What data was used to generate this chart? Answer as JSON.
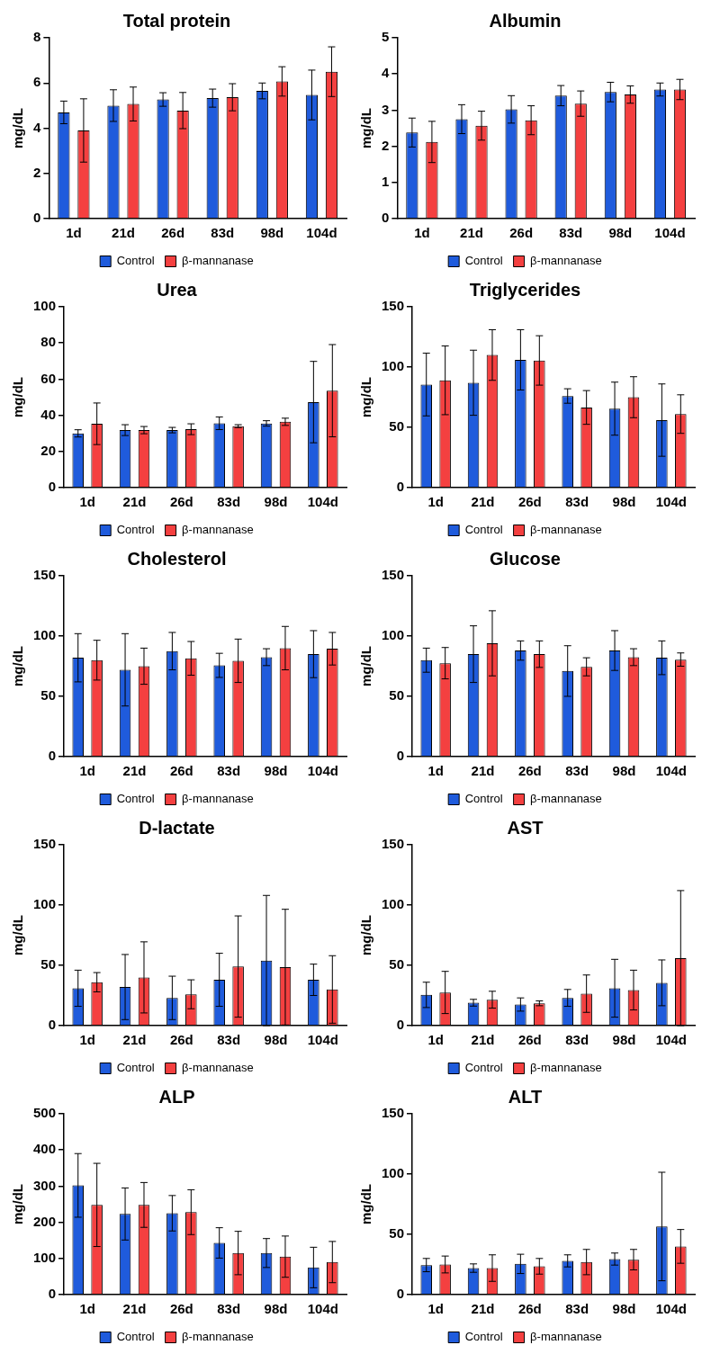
{
  "chart_data": [
    {
      "type": "bar",
      "title": "Total protein",
      "ylabel": "mg/dL",
      "categories": [
        "1d",
        "21d",
        "26d",
        "83d",
        "98d",
        "104d"
      ],
      "ylim": [
        0,
        8
      ],
      "yticks": [
        0,
        2,
        4,
        6,
        8
      ],
      "grid": false,
      "legend": "bottom",
      "series": [
        {
          "name": "Control",
          "color": "#1f5bdc",
          "values": [
            4.7,
            5.0,
            5.27,
            5.33,
            5.65,
            5.47
          ],
          "errors": [
            0.5,
            0.7,
            0.3,
            0.4,
            0.35,
            1.1
          ]
        },
        {
          "name": "β-mannanase",
          "color": "#f44040",
          "values": [
            3.9,
            5.07,
            4.78,
            5.37,
            6.07,
            6.5
          ],
          "errors": [
            1.4,
            0.75,
            0.8,
            0.6,
            0.65,
            1.1
          ]
        }
      ]
    },
    {
      "type": "bar",
      "title": "Albumin",
      "ylabel": "mg/dL",
      "categories": [
        "1d",
        "21d",
        "26d",
        "83d",
        "98d",
        "104d"
      ],
      "ylim": [
        0,
        5
      ],
      "yticks": [
        0,
        1,
        2,
        3,
        4,
        5
      ],
      "grid": false,
      "legend": "bottom",
      "series": [
        {
          "name": "Control",
          "color": "#1f5bdc",
          "values": [
            2.38,
            2.75,
            3.02,
            3.4,
            3.5,
            3.57
          ],
          "errors": [
            0.4,
            0.4,
            0.38,
            0.28,
            0.27,
            0.18
          ]
        },
        {
          "name": "β-mannanase",
          "color": "#f44040",
          "values": [
            2.12,
            2.57,
            2.72,
            3.18,
            3.43,
            3.57
          ],
          "errors": [
            0.57,
            0.4,
            0.4,
            0.35,
            0.24,
            0.28
          ]
        }
      ]
    },
    {
      "type": "bar",
      "title": "Urea",
      "ylabel": "mg/dL",
      "categories": [
        "1d",
        "21d",
        "26d",
        "83d",
        "98d",
        "104d"
      ],
      "ylim": [
        0,
        100
      ],
      "yticks": [
        0,
        20,
        40,
        60,
        80,
        100
      ],
      "grid": false,
      "legend": "bottom",
      "series": [
        {
          "name": "Control",
          "color": "#1f5bdc",
          "values": [
            30,
            31.8,
            31.8,
            35.6,
            35.5,
            47.3
          ],
          "errors": [
            2,
            3,
            1.5,
            3.5,
            1.5,
            22.5
          ]
        },
        {
          "name": "β-mannanase",
          "color": "#f44040",
          "values": [
            35.3,
            31.8,
            32.3,
            34,
            36.4,
            53.6
          ],
          "errors": [
            11.5,
            2,
            3,
            0.8,
            2,
            25.5
          ]
        }
      ]
    },
    {
      "type": "bar",
      "title": "Triglycerides",
      "ylabel": "mg/dL",
      "categories": [
        "1d",
        "21d",
        "26d",
        "83d",
        "98d",
        "104d"
      ],
      "ylim": [
        0,
        150
      ],
      "yticks": [
        0,
        50,
        100,
        150
      ],
      "grid": false,
      "legend": "bottom",
      "series": [
        {
          "name": "Control",
          "color": "#1f5bdc",
          "values": [
            85.5,
            87,
            106,
            76,
            65.5,
            56
          ],
          "errors": [
            26,
            27,
            25,
            6,
            22,
            30
          ]
        },
        {
          "name": "β-mannanase",
          "color": "#f44040",
          "values": [
            89,
            110,
            105.5,
            66.5,
            75,
            61
          ],
          "errors": [
            28.5,
            21,
            20.5,
            14,
            17,
            16
          ]
        }
      ]
    },
    {
      "type": "bar",
      "title": "Cholesterol",
      "ylabel": "mg/dL",
      "categories": [
        "1d",
        "21d",
        "26d",
        "83d",
        "98d",
        "104d"
      ],
      "ylim": [
        0,
        150
      ],
      "yticks": [
        0,
        50,
        100,
        150
      ],
      "grid": false,
      "legend": "bottom",
      "series": [
        {
          "name": "Control",
          "color": "#1f5bdc",
          "values": [
            82,
            72,
            87.5,
            75.7,
            82.5,
            85
          ],
          "errors": [
            20,
            30,
            15.5,
            10,
            7,
            19.5
          ]
        },
        {
          "name": "β-mannanase",
          "color": "#f44040",
          "values": [
            80,
            75,
            81.5,
            79.5,
            90,
            89.5
          ],
          "errors": [
            16.5,
            15,
            14,
            18,
            18,
            13.5
          ]
        }
      ]
    },
    {
      "type": "bar",
      "title": "Glucose",
      "ylabel": "mg/dL",
      "categories": [
        "1d",
        "21d",
        "26d",
        "83d",
        "98d",
        "104d"
      ],
      "ylim": [
        0,
        150
      ],
      "yticks": [
        0,
        50,
        100,
        150
      ],
      "grid": false,
      "legend": "bottom",
      "series": [
        {
          "name": "Control",
          "color": "#1f5bdc",
          "values": [
            80,
            85,
            88,
            71,
            88,
            82
          ],
          "errors": [
            10,
            23.5,
            8,
            21,
            16.5,
            14
          ]
        },
        {
          "name": "β-mannanase",
          "color": "#f44040",
          "values": [
            77.5,
            94,
            85,
            74.5,
            82.5,
            80.5
          ],
          "errors": [
            13,
            27,
            11,
            7.5,
            7,
            5.5
          ]
        }
      ]
    },
    {
      "type": "bar",
      "title": "D-lactate",
      "ylabel": "mg/dL",
      "categories": [
        "1d",
        "21d",
        "26d",
        "83d",
        "98d",
        "104d"
      ],
      "ylim": [
        0,
        150
      ],
      "yticks": [
        0,
        50,
        100,
        150
      ],
      "grid": false,
      "legend": "bottom",
      "series": [
        {
          "name": "Control",
          "color": "#1f5bdc",
          "values": [
            31,
            32,
            23,
            38,
            54,
            38
          ],
          "errors": [
            15,
            27,
            18,
            22,
            54,
            13
          ]
        },
        {
          "name": "β-mannanase",
          "color": "#f44040",
          "values": [
            36,
            40,
            26,
            49,
            48.5,
            30
          ],
          "errors": [
            8,
            29.5,
            12,
            42,
            48,
            28
          ]
        }
      ]
    },
    {
      "type": "bar",
      "title": "AST",
      "ylabel": "mg/dL",
      "categories": [
        "1d",
        "21d",
        "26d",
        "83d",
        "98d",
        "104d"
      ],
      "ylim": [
        0,
        150
      ],
      "yticks": [
        0,
        50,
        100,
        150
      ],
      "grid": false,
      "legend": "bottom",
      "series": [
        {
          "name": "Control",
          "color": "#1f5bdc",
          "values": [
            25.5,
            19,
            17.5,
            23,
            31,
            35.5
          ],
          "errors": [
            10.5,
            2.8,
            5.5,
            7,
            24,
            19
          ]
        },
        {
          "name": "β-mannanase",
          "color": "#f44040",
          "values": [
            27.5,
            21.5,
            18.5,
            26.5,
            29.5,
            56
          ],
          "errors": [
            17.5,
            7,
            2,
            15.5,
            16.5,
            56
          ]
        }
      ]
    },
    {
      "type": "bar",
      "title": "ALP",
      "ylabel": "mg/dL",
      "categories": [
        "1d",
        "21d",
        "26d",
        "83d",
        "98d",
        "104d"
      ],
      "ylim": [
        0,
        500
      ],
      "yticks": [
        0,
        100,
        200,
        300,
        400,
        500
      ],
      "grid": false,
      "legend": "bottom",
      "series": [
        {
          "name": "Control",
          "color": "#1f5bdc",
          "values": [
            302,
            223,
            225,
            143,
            115,
            75
          ],
          "errors": [
            88,
            72,
            49,
            42,
            40,
            56
          ]
        },
        {
          "name": "β-mannanase",
          "color": "#f44040",
          "values": [
            248,
            248,
            228,
            115,
            105,
            90
          ],
          "errors": [
            115,
            62,
            62,
            60,
            57,
            57
          ]
        }
      ]
    },
    {
      "type": "bar",
      "title": "ALT",
      "ylabel": "mg/dL",
      "categories": [
        "1d",
        "21d",
        "26d",
        "83d",
        "98d",
        "104d"
      ],
      "ylim": [
        0,
        150
      ],
      "yticks": [
        0,
        50,
        100,
        150
      ],
      "grid": false,
      "legend": "bottom",
      "series": [
        {
          "name": "Control",
          "color": "#1f5bdc",
          "values": [
            24.5,
            22,
            25.5,
            28,
            29.5,
            56.5
          ],
          "errors": [
            5.5,
            3.5,
            8,
            5,
            5,
            45
          ]
        },
        {
          "name": "β-mannanase",
          "color": "#f44040",
          "values": [
            25,
            22,
            23.5,
            27,
            29,
            40
          ],
          "errors": [
            7,
            11,
            6.5,
            10.5,
            8.5,
            14
          ]
        }
      ]
    }
  ]
}
